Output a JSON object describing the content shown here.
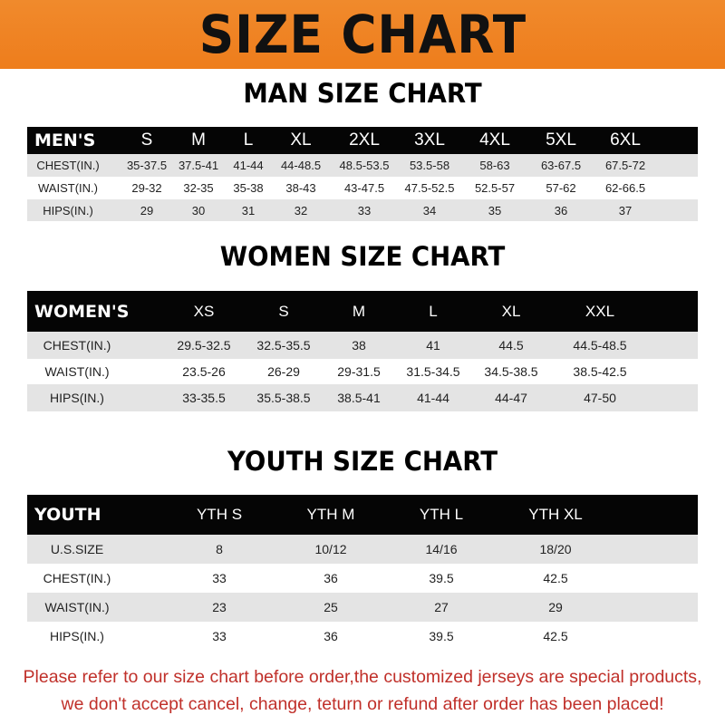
{
  "banner_title": "SIZE CHART",
  "men": {
    "title": "MAN SIZE CHART",
    "header": [
      "MEN'S",
      "S",
      "M",
      "L",
      "XL",
      "2XL",
      "3XL",
      "4XL",
      "5XL",
      "6XL"
    ],
    "rows": [
      [
        "CHEST(IN.)",
        "35-37.5",
        "37.5-41",
        "41-44",
        "44-48.5",
        "48.5-53.5",
        "53.5-58",
        "58-63",
        "63-67.5",
        "67.5-72"
      ],
      [
        "WAIST(IN.)",
        "29-32",
        "32-35",
        "35-38",
        "38-43",
        "43-47.5",
        "47.5-52.5",
        "52.5-57",
        "57-62",
        "62-66.5"
      ],
      [
        "HIPS(IN.)",
        "29",
        "30",
        "31",
        "32",
        "33",
        "34",
        "35",
        "36",
        "37"
      ]
    ]
  },
  "women": {
    "title": "WOMEN SIZE CHART",
    "header": [
      "WOMEN'S",
      "XS",
      "S",
      "M",
      "L",
      "XL",
      "XXL"
    ],
    "rows": [
      [
        "CHEST(IN.)",
        "29.5-32.5",
        "32.5-35.5",
        "38",
        "41",
        "44.5",
        "44.5-48.5"
      ],
      [
        "WAIST(IN.)",
        "23.5-26",
        "26-29",
        "29-31.5",
        "31.5-34.5",
        "34.5-38.5",
        "38.5-42.5"
      ],
      [
        "HIPS(IN.)",
        "33-35.5",
        "35.5-38.5",
        "38.5-41",
        "41-44",
        "44-47",
        "47-50"
      ]
    ]
  },
  "youth": {
    "title": "YOUTH SIZE CHART",
    "header": [
      "YOUTH",
      "YTH S",
      "YTH M",
      "YTH L",
      "YTH XL"
    ],
    "rows": [
      [
        "U.S.SIZE",
        "8",
        "10/12",
        "14/16",
        "18/20"
      ],
      [
        "CHEST(IN.)",
        "33",
        "36",
        "39.5",
        "42.5"
      ],
      [
        "WAIST(IN.)",
        "23",
        "25",
        "27",
        "29"
      ],
      [
        "HIPS(IN.)",
        "33",
        "36",
        "39.5",
        "42.5"
      ]
    ]
  },
  "footer": {
    "line1": "Please refer to our size chart before order,the customized jerseys are special products,",
    "line2": "we don't accept cancel, change, teturn or refund after order has been placed!"
  },
  "colors": {
    "banner": "#ee7d1c",
    "header_row": "#050505",
    "stripe": "#e4e4e4",
    "notice": "#c0302a"
  }
}
